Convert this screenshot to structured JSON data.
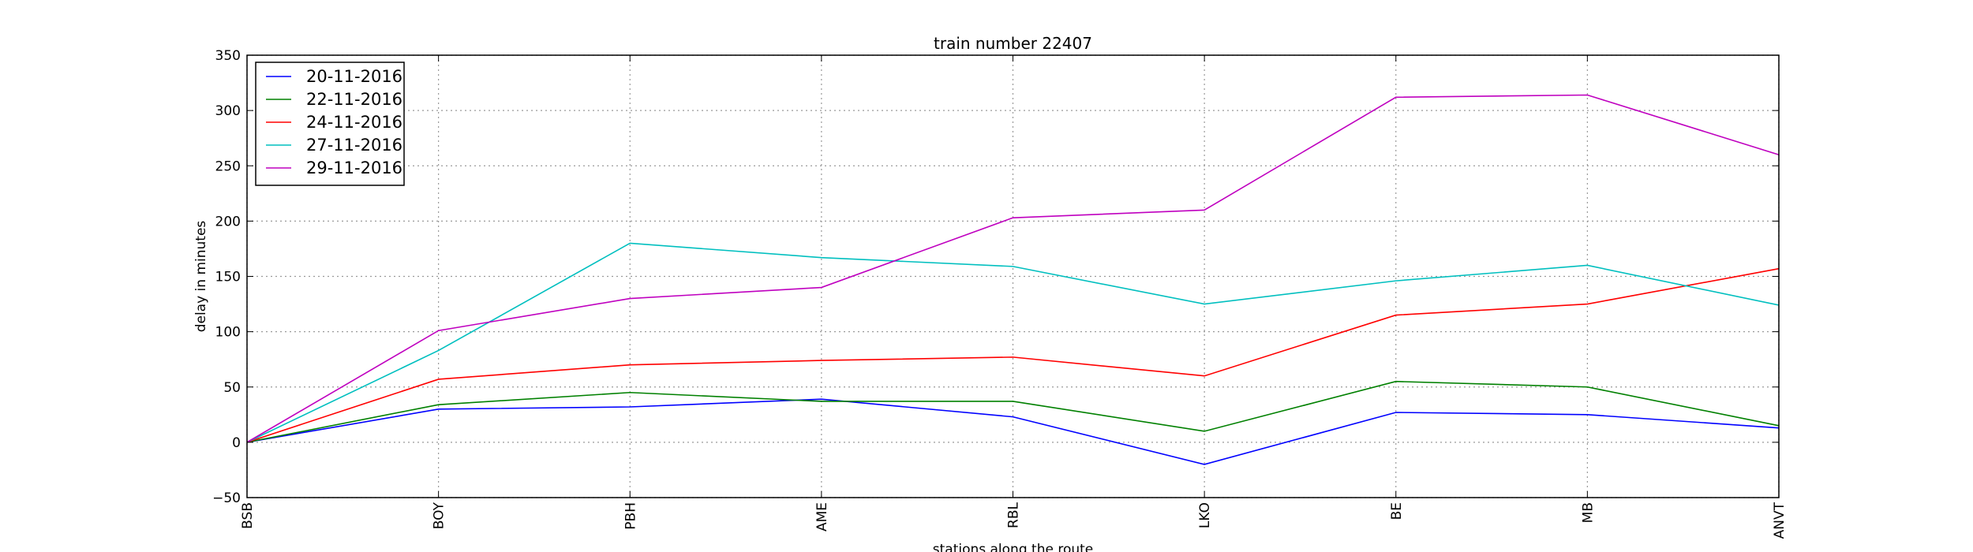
{
  "chart_data": {
    "type": "line",
    "title": "train number 22407",
    "xlabel": "stations along the route",
    "ylabel": "delay in minutes",
    "categories": [
      "BSB",
      "BOY",
      "PBH",
      "AME",
      "RBL",
      "LKO",
      "BE",
      "MB",
      "ANVT"
    ],
    "ylim": [
      -50,
      350
    ],
    "yticks": [
      -50,
      0,
      50,
      100,
      150,
      200,
      250,
      300,
      350
    ],
    "grid": true,
    "legend_position": "top-left",
    "series": [
      {
        "name": "20-11-2016",
        "color": "#0000ff",
        "values": [
          0,
          30,
          32,
          39,
          23,
          -20,
          27,
          25,
          13
        ]
      },
      {
        "name": "22-11-2016",
        "color": "#008000",
        "values": [
          0,
          34,
          45,
          37,
          37,
          10,
          55,
          50,
          15
        ]
      },
      {
        "name": "24-11-2016",
        "color": "#ff0000",
        "values": [
          0,
          57,
          70,
          74,
          77,
          60,
          115,
          125,
          157
        ]
      },
      {
        "name": "27-11-2016",
        "color": "#00bfbf",
        "values": [
          0,
          83,
          180,
          167,
          159,
          125,
          146,
          160,
          124
        ]
      },
      {
        "name": "29-11-2016",
        "color": "#bf00bf",
        "values": [
          0,
          101,
          130,
          140,
          203,
          210,
          312,
          314,
          260
        ]
      }
    ]
  }
}
